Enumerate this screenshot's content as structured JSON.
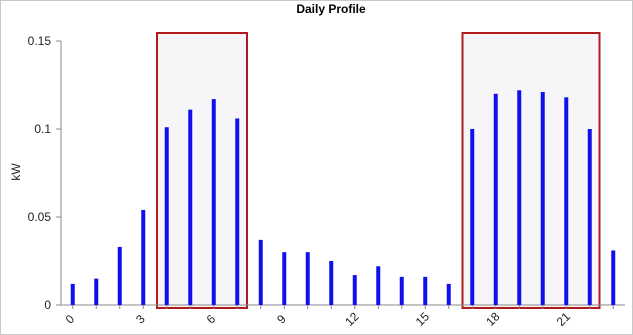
{
  "chart_data": {
    "type": "bar",
    "title": "Daily Profile",
    "xlabel": "",
    "ylabel": "kW",
    "x": [
      0,
      1,
      2,
      3,
      4,
      5,
      6,
      7,
      8,
      9,
      10,
      11,
      12,
      13,
      14,
      15,
      16,
      17,
      18,
      19,
      20,
      21,
      22,
      23
    ],
    "values": [
      0.012,
      0.015,
      0.033,
      0.054,
      0.101,
      0.111,
      0.117,
      0.106,
      0.037,
      0.03,
      0.03,
      0.025,
      0.017,
      0.022,
      0.016,
      0.016,
      0.012,
      0.1,
      0.12,
      0.122,
      0.121,
      0.118,
      0.1,
      0.031
    ],
    "xticks": [
      "0",
      "3",
      "6",
      "9",
      "12",
      "15",
      "18",
      "21"
    ],
    "yticks": [
      "0",
      "0.05",
      "0.1",
      "0.15"
    ],
    "ylim": [
      0,
      0.15
    ],
    "xlim": [
      -0.5,
      23.5
    ],
    "grid": false,
    "legend": "none",
    "highlight_ranges": [
      [
        4,
        7
      ],
      [
        17,
        22
      ]
    ],
    "colors": {
      "bar": "#1010ee",
      "highlight_border": "#b01c1c",
      "highlight_fill": "#f6f6f8",
      "axis": "#888888"
    }
  }
}
